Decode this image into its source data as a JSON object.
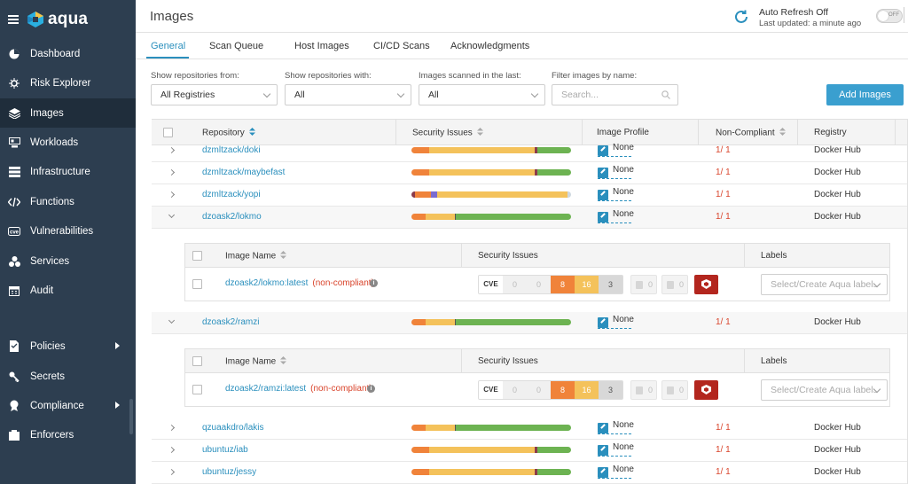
{
  "app": {
    "name": "aqua"
  },
  "sidebar": {
    "items": [
      {
        "label": "Dashboard",
        "icon": "pie-chart-icon"
      },
      {
        "label": "Risk Explorer",
        "icon": "bug-icon"
      },
      {
        "label": "Images",
        "icon": "layers-icon",
        "active": true
      },
      {
        "label": "Workloads",
        "icon": "workloads-icon"
      },
      {
        "label": "Infrastructure",
        "icon": "server-icon"
      },
      {
        "label": "Functions",
        "icon": "code-icon"
      },
      {
        "label": "Vulnerabilities",
        "icon": "cve-icon"
      },
      {
        "label": "Services",
        "icon": "services-icon"
      },
      {
        "label": "Audit",
        "icon": "calendar-icon"
      },
      {
        "label": "Policies",
        "icon": "policy-icon",
        "submenu": true
      },
      {
        "label": "Secrets",
        "icon": "key-icon"
      },
      {
        "label": "Compliance",
        "icon": "compliance-icon",
        "submenu": true
      },
      {
        "label": "Enforcers",
        "icon": "enforcer-icon"
      }
    ]
  },
  "header": {
    "title": "Images",
    "auto_refresh": "Auto Refresh Off",
    "last_updated": "Last updated: a minute ago",
    "toggle_label": "OFF"
  },
  "tabs": [
    "General",
    "Scan Queue",
    "Host Images",
    "CI/CD Scans",
    "Acknowledgments"
  ],
  "filters": {
    "repos_from_label": "Show repositories from:",
    "repos_from_value": "All Registries",
    "repos_with_label": "Show repositories with:",
    "repos_with_value": "All",
    "scanned_label": "Images scanned in the last:",
    "scanned_value": "All",
    "filter_name_label": "Filter images by name:",
    "filter_name_placeholder": "Search..."
  },
  "add_button": "Add Images",
  "table": {
    "columns": [
      "Repository",
      "Security Issues",
      "Image Profile",
      "Non-Compliant",
      "Registry"
    ],
    "rows": [
      {
        "repo": "dzmltzack/doki",
        "profile": "None",
        "noncompliant": "1/ 1",
        "registry": "Docker Hub",
        "segments": [
          [
            "#f0833a",
            11
          ],
          [
            "#f4c25b",
            66
          ],
          [
            "#8b3a4a",
            2
          ],
          [
            "#6db352",
            21
          ]
        ]
      },
      {
        "repo": "dzmltzack/maybefast",
        "profile": "None",
        "noncompliant": "1/ 1",
        "registry": "Docker Hub",
        "segments": [
          [
            "#f0833a",
            11
          ],
          [
            "#f4c25b",
            66
          ],
          [
            "#8b3a4a",
            2
          ],
          [
            "#6db352",
            21
          ]
        ]
      },
      {
        "repo": "dzmltzack/yopi",
        "profile": "None",
        "noncompliant": "1/ 1",
        "registry": "Docker Hub",
        "segments": [
          [
            "#8b3a4a",
            2
          ],
          [
            "#f0833a",
            10
          ],
          [
            "#7a6bd0",
            4
          ],
          [
            "#f4c25b",
            82
          ],
          [
            "#cfd8e0",
            2
          ]
        ]
      },
      {
        "repo": "dzoask2/lokmo",
        "profile": "None",
        "noncompliant": "1/ 1",
        "registry": "Docker Hub",
        "expanded": true,
        "segments": [
          [
            "#f0833a",
            9
          ],
          [
            "#f4c25b",
            18
          ],
          [
            "#555",
            1
          ],
          [
            "#6db352",
            72
          ]
        ]
      },
      {
        "repo": "dzoask2/ramzi",
        "profile": "None",
        "noncompliant": "1/ 1",
        "registry": "Docker Hub",
        "expanded": true,
        "segments": [
          [
            "#f0833a",
            9
          ],
          [
            "#f4c25b",
            18
          ],
          [
            "#555",
            1
          ],
          [
            "#6db352",
            72
          ]
        ]
      },
      {
        "repo": "qzuaakdro/lakis",
        "profile": "None",
        "noncompliant": "1/ 1",
        "registry": "Docker Hub",
        "segments": [
          [
            "#f0833a",
            9
          ],
          [
            "#f4c25b",
            18
          ],
          [
            "#555",
            1
          ],
          [
            "#6db352",
            72
          ]
        ]
      },
      {
        "repo": "ubuntuz/iab",
        "profile": "None",
        "noncompliant": "1/ 1",
        "registry": "Docker Hub",
        "segments": [
          [
            "#f0833a",
            11
          ],
          [
            "#f4c25b",
            66
          ],
          [
            "#8b3a4a",
            2
          ],
          [
            "#6db352",
            21
          ]
        ]
      },
      {
        "repo": "ubuntuz/jessy",
        "profile": "None",
        "noncompliant": "1/ 1",
        "registry": "Docker Hub",
        "segments": [
          [
            "#f0833a",
            11
          ],
          [
            "#f4c25b",
            66
          ],
          [
            "#8b3a4a",
            2
          ],
          [
            "#6db352",
            21
          ]
        ]
      }
    ]
  },
  "subtables": [
    {
      "columns": [
        "Image Name",
        "Security Issues",
        "Labels"
      ],
      "image": "dzoask2/lokmo:latest",
      "tag": "(non-compliant)",
      "issues": {
        "cve": "CVE",
        "critical": "0",
        "high": "0",
        "medium": "8",
        "low": "16",
        "negligible": "3",
        "malware": "0",
        "sensitive": "0"
      },
      "label_placeholder": "Select/Create Aqua labels"
    },
    {
      "columns": [
        "Image Name",
        "Security Issues",
        "Labels"
      ],
      "image": "dzoask2/ramzi:latest",
      "tag": "(non-compliant)",
      "issues": {
        "cve": "CVE",
        "critical": "0",
        "high": "0",
        "medium": "8",
        "low": "16",
        "negligible": "3",
        "malware": "0",
        "sensitive": "0"
      },
      "label_placeholder": "Select/Create Aqua labels"
    }
  ],
  "colors": {
    "accent": "#2a8fbd",
    "sidebar": "#2d3e50",
    "danger": "#d9442b",
    "button": "#3a9fcf"
  }
}
